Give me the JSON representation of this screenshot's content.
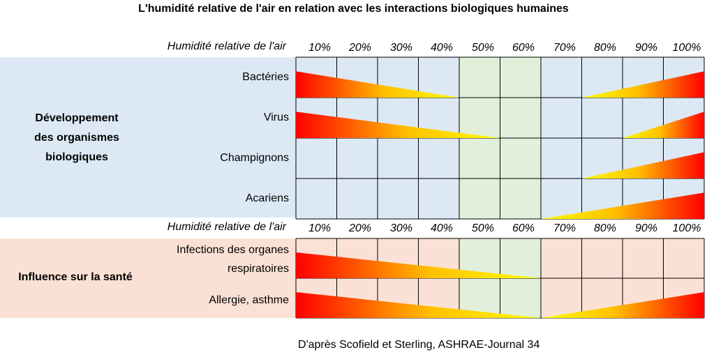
{
  "title": "L'humidité relative de l'air en relation avec les interactions biologiques humaines",
  "scale_label": "Humidité relative de l'air",
  "ticks": [
    "10%",
    "20%",
    "30%",
    "40%",
    "50%",
    "60%",
    "70%",
    "80%",
    "90%",
    "100%"
  ],
  "sections": [
    {
      "label_lines": [
        "Développement",
        "des organismes",
        "biologiques"
      ],
      "rows": [
        {
          "label": "Bactéries",
          "low_end_pct": 40,
          "high_start_pct": 70
        },
        {
          "label": "Virus",
          "low_end_pct": 50,
          "high_start_pct": 80
        },
        {
          "label": "Champignons",
          "low_end_pct": null,
          "high_start_pct": 70
        },
        {
          "label": "Acariens",
          "low_end_pct": null,
          "high_start_pct": 60
        }
      ]
    },
    {
      "label_lines": [
        "Influence sur la santé"
      ],
      "rows": [
        {
          "label_lines": [
            "Infections des organes",
            "respiratoires"
          ],
          "low_end_pct": 60,
          "high_start_pct": null
        },
        {
          "label": "Allergie, asthme",
          "low_end_pct": 60,
          "high_start_pct": 60
        }
      ]
    }
  ],
  "optimal_zone_pct": [
    50,
    60
  ],
  "colors": {
    "section1_bg": "#dce9f5",
    "section2_bg": "#fbe1d5",
    "optimal_bg": "#e2efda",
    "gradient_red": "#ff0000",
    "gradient_yellow": "#ffff00"
  },
  "source": "D'après Scofield et Sterling, ASHRAE-Journal 34"
}
